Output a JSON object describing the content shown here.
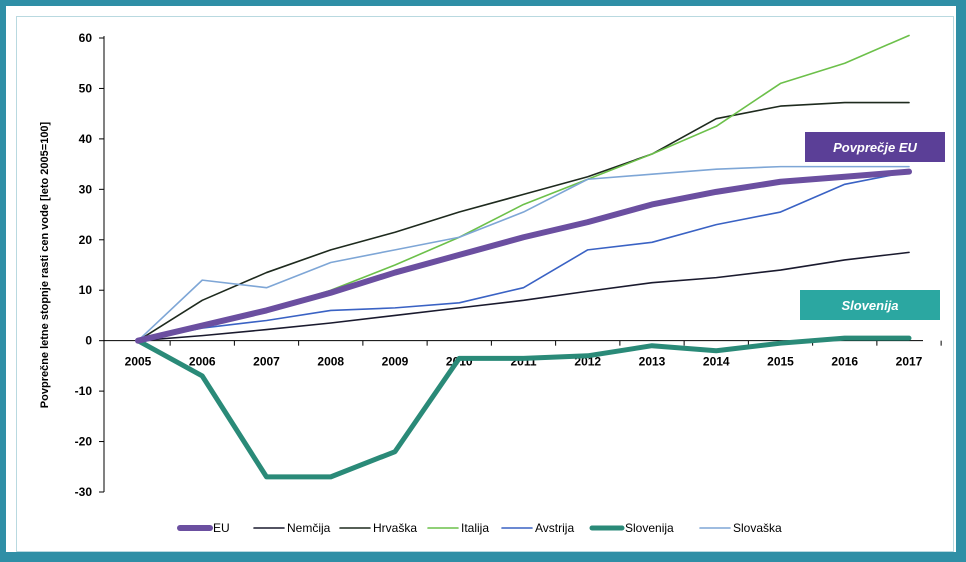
{
  "chart_data": {
    "type": "line",
    "title": "",
    "ylabel": "Povprečne letne stopnje rasti cen vode [leto 2005=100]",
    "xlabel": "",
    "ylim": [
      -30,
      60
    ],
    "yticks": [
      60,
      50,
      40,
      30,
      20,
      10,
      0,
      -10,
      -20,
      -30
    ],
    "categories": [
      "2005",
      "2006",
      "2007",
      "2008",
      "2009",
      "2010",
      "2011",
      "2012",
      "2013",
      "2014",
      "2015",
      "2016",
      "2017"
    ],
    "grid": false,
    "legend_position": "bottom",
    "series": [
      {
        "name": "EU",
        "color": "#6b4fa0",
        "width": 6,
        "values": [
          0,
          3,
          6,
          9.5,
          13.5,
          17,
          20.5,
          23.5,
          27,
          29.5,
          31.5,
          32.5,
          33.5
        ]
      },
      {
        "name": "Nemčija",
        "color": "#1a1a2e",
        "width": 1.6,
        "values": [
          0,
          1,
          2.2,
          3.5,
          5,
          6.5,
          8,
          9.8,
          11.5,
          12.5,
          14,
          16,
          17.5
        ]
      },
      {
        "name": "Hrvaška",
        "color": "#1e2a1e",
        "width": 1.6,
        "values": [
          0,
          8,
          13.5,
          18,
          21.5,
          25.5,
          29,
          32.5,
          37,
          44,
          46.5,
          47.2,
          47.2
        ]
      },
      {
        "name": "Italija",
        "color": "#6cc04a",
        "width": 1.6,
        "values": [
          0,
          3,
          6,
          10,
          15,
          20.5,
          27,
          32,
          37,
          42.5,
          51,
          55,
          60.5
        ]
      },
      {
        "name": "Avstrija",
        "color": "#3a62c4",
        "width": 1.6,
        "values": [
          0,
          2.5,
          4,
          6,
          6.5,
          7.5,
          10.5,
          18,
          19.5,
          23,
          25.5,
          31,
          33.5
        ]
      },
      {
        "name": "Slovenija",
        "color": "#2a8a78",
        "width": 5,
        "values": [
          0,
          -7,
          -27,
          -27,
          -22,
          -3.5,
          -3.5,
          -3,
          -1,
          -2,
          -0.5,
          0.5,
          0.5
        ]
      },
      {
        "name": "Slovaška",
        "color": "#7ea6d6",
        "width": 1.6,
        "values": [
          0,
          12,
          10.5,
          15.5,
          18,
          20.5,
          25.5,
          32,
          33,
          34,
          34.5,
          34.5,
          34.5
        ]
      }
    ],
    "annotations": [
      {
        "text": "Povprečje EU",
        "color": "#5b3f97"
      },
      {
        "text": "Slovenija",
        "color": "#2ba7a1"
      }
    ]
  }
}
